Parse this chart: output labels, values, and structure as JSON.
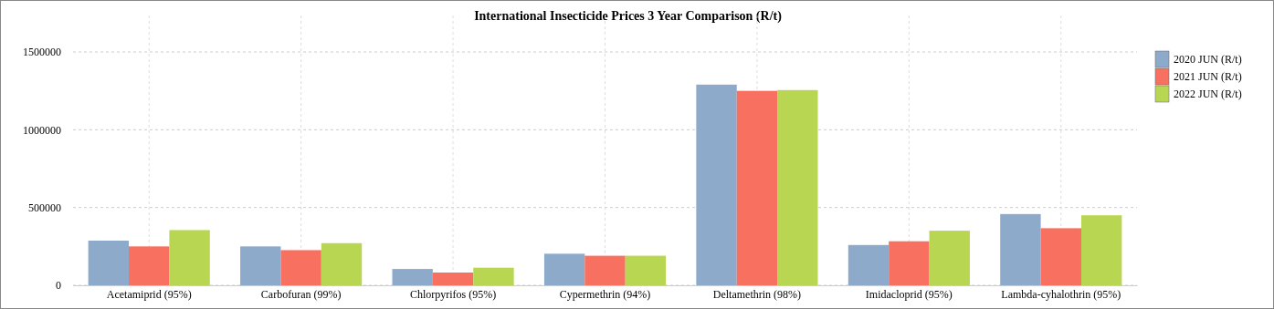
{
  "chart_data": {
    "type": "bar",
    "title": "International Insecticide Prices 3 Year Comparison (R/t)",
    "categories": [
      "Acetamiprid (95%)",
      "Carbofuran (99%)",
      "Chlorpyrifos (95%)",
      "Cypermethrin (94%)",
      "Deltamethrin (98%)",
      "Imidacloprid (95%)",
      "Lambda-cyhalothrin (95%)"
    ],
    "series": [
      {
        "name": "2020 JUN (R/t)",
        "color": "#8eaacb",
        "values": [
          287000,
          250000,
          105000,
          203000,
          1290000,
          259000,
          458000
        ]
      },
      {
        "name": "2021 JUN (R/t)",
        "color": "#f87060",
        "values": [
          250000,
          226000,
          82000,
          190000,
          1250000,
          283000,
          367000
        ]
      },
      {
        "name": "2022 JUN (R/t)",
        "color": "#b9d653",
        "values": [
          355000,
          271000,
          113000,
          190000,
          1255000,
          351000,
          450000
        ]
      }
    ],
    "ylim": [
      0,
      1500000
    ],
    "yticks": [
      0,
      500000,
      1000000,
      1500000
    ],
    "grid": true,
    "legend": "top right"
  }
}
